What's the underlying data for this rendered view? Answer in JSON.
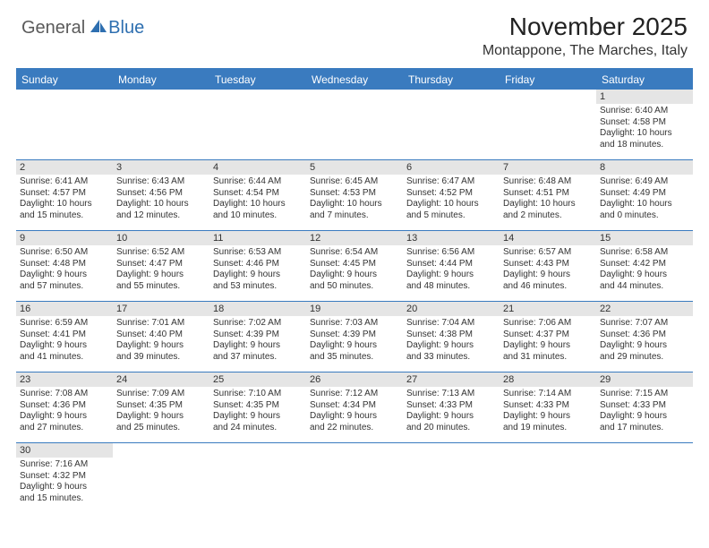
{
  "logo": {
    "text1": "General",
    "text2": "Blue"
  },
  "title": "November 2025",
  "location": "Montappone, The Marches, Italy",
  "colors": {
    "header_bar": "#3a7bbf",
    "daynum_bg": "#e5e5e5",
    "text": "#333333",
    "logo_gray": "#5a5a5a",
    "logo_blue": "#2e6fb0"
  },
  "weekdays": [
    "Sunday",
    "Monday",
    "Tuesday",
    "Wednesday",
    "Thursday",
    "Friday",
    "Saturday"
  ],
  "weeks": [
    [
      null,
      null,
      null,
      null,
      null,
      null,
      {
        "d": "1",
        "sr": "Sunrise: 6:40 AM",
        "ss": "Sunset: 4:58 PM",
        "dl1": "Daylight: 10 hours",
        "dl2": "and 18 minutes."
      }
    ],
    [
      {
        "d": "2",
        "sr": "Sunrise: 6:41 AM",
        "ss": "Sunset: 4:57 PM",
        "dl1": "Daylight: 10 hours",
        "dl2": "and 15 minutes."
      },
      {
        "d": "3",
        "sr": "Sunrise: 6:43 AM",
        "ss": "Sunset: 4:56 PM",
        "dl1": "Daylight: 10 hours",
        "dl2": "and 12 minutes."
      },
      {
        "d": "4",
        "sr": "Sunrise: 6:44 AM",
        "ss": "Sunset: 4:54 PM",
        "dl1": "Daylight: 10 hours",
        "dl2": "and 10 minutes."
      },
      {
        "d": "5",
        "sr": "Sunrise: 6:45 AM",
        "ss": "Sunset: 4:53 PM",
        "dl1": "Daylight: 10 hours",
        "dl2": "and 7 minutes."
      },
      {
        "d": "6",
        "sr": "Sunrise: 6:47 AM",
        "ss": "Sunset: 4:52 PM",
        "dl1": "Daylight: 10 hours",
        "dl2": "and 5 minutes."
      },
      {
        "d": "7",
        "sr": "Sunrise: 6:48 AM",
        "ss": "Sunset: 4:51 PM",
        "dl1": "Daylight: 10 hours",
        "dl2": "and 2 minutes."
      },
      {
        "d": "8",
        "sr": "Sunrise: 6:49 AM",
        "ss": "Sunset: 4:49 PM",
        "dl1": "Daylight: 10 hours",
        "dl2": "and 0 minutes."
      }
    ],
    [
      {
        "d": "9",
        "sr": "Sunrise: 6:50 AM",
        "ss": "Sunset: 4:48 PM",
        "dl1": "Daylight: 9 hours",
        "dl2": "and 57 minutes."
      },
      {
        "d": "10",
        "sr": "Sunrise: 6:52 AM",
        "ss": "Sunset: 4:47 PM",
        "dl1": "Daylight: 9 hours",
        "dl2": "and 55 minutes."
      },
      {
        "d": "11",
        "sr": "Sunrise: 6:53 AM",
        "ss": "Sunset: 4:46 PM",
        "dl1": "Daylight: 9 hours",
        "dl2": "and 53 minutes."
      },
      {
        "d": "12",
        "sr": "Sunrise: 6:54 AM",
        "ss": "Sunset: 4:45 PM",
        "dl1": "Daylight: 9 hours",
        "dl2": "and 50 minutes."
      },
      {
        "d": "13",
        "sr": "Sunrise: 6:56 AM",
        "ss": "Sunset: 4:44 PM",
        "dl1": "Daylight: 9 hours",
        "dl2": "and 48 minutes."
      },
      {
        "d": "14",
        "sr": "Sunrise: 6:57 AM",
        "ss": "Sunset: 4:43 PM",
        "dl1": "Daylight: 9 hours",
        "dl2": "and 46 minutes."
      },
      {
        "d": "15",
        "sr": "Sunrise: 6:58 AM",
        "ss": "Sunset: 4:42 PM",
        "dl1": "Daylight: 9 hours",
        "dl2": "and 44 minutes."
      }
    ],
    [
      {
        "d": "16",
        "sr": "Sunrise: 6:59 AM",
        "ss": "Sunset: 4:41 PM",
        "dl1": "Daylight: 9 hours",
        "dl2": "and 41 minutes."
      },
      {
        "d": "17",
        "sr": "Sunrise: 7:01 AM",
        "ss": "Sunset: 4:40 PM",
        "dl1": "Daylight: 9 hours",
        "dl2": "and 39 minutes."
      },
      {
        "d": "18",
        "sr": "Sunrise: 7:02 AM",
        "ss": "Sunset: 4:39 PM",
        "dl1": "Daylight: 9 hours",
        "dl2": "and 37 minutes."
      },
      {
        "d": "19",
        "sr": "Sunrise: 7:03 AM",
        "ss": "Sunset: 4:39 PM",
        "dl1": "Daylight: 9 hours",
        "dl2": "and 35 minutes."
      },
      {
        "d": "20",
        "sr": "Sunrise: 7:04 AM",
        "ss": "Sunset: 4:38 PM",
        "dl1": "Daylight: 9 hours",
        "dl2": "and 33 minutes."
      },
      {
        "d": "21",
        "sr": "Sunrise: 7:06 AM",
        "ss": "Sunset: 4:37 PM",
        "dl1": "Daylight: 9 hours",
        "dl2": "and 31 minutes."
      },
      {
        "d": "22",
        "sr": "Sunrise: 7:07 AM",
        "ss": "Sunset: 4:36 PM",
        "dl1": "Daylight: 9 hours",
        "dl2": "and 29 minutes."
      }
    ],
    [
      {
        "d": "23",
        "sr": "Sunrise: 7:08 AM",
        "ss": "Sunset: 4:36 PM",
        "dl1": "Daylight: 9 hours",
        "dl2": "and 27 minutes."
      },
      {
        "d": "24",
        "sr": "Sunrise: 7:09 AM",
        "ss": "Sunset: 4:35 PM",
        "dl1": "Daylight: 9 hours",
        "dl2": "and 25 minutes."
      },
      {
        "d": "25",
        "sr": "Sunrise: 7:10 AM",
        "ss": "Sunset: 4:35 PM",
        "dl1": "Daylight: 9 hours",
        "dl2": "and 24 minutes."
      },
      {
        "d": "26",
        "sr": "Sunrise: 7:12 AM",
        "ss": "Sunset: 4:34 PM",
        "dl1": "Daylight: 9 hours",
        "dl2": "and 22 minutes."
      },
      {
        "d": "27",
        "sr": "Sunrise: 7:13 AM",
        "ss": "Sunset: 4:33 PM",
        "dl1": "Daylight: 9 hours",
        "dl2": "and 20 minutes."
      },
      {
        "d": "28",
        "sr": "Sunrise: 7:14 AM",
        "ss": "Sunset: 4:33 PM",
        "dl1": "Daylight: 9 hours",
        "dl2": "and 19 minutes."
      },
      {
        "d": "29",
        "sr": "Sunrise: 7:15 AM",
        "ss": "Sunset: 4:33 PM",
        "dl1": "Daylight: 9 hours",
        "dl2": "and 17 minutes."
      }
    ],
    [
      {
        "d": "30",
        "sr": "Sunrise: 7:16 AM",
        "ss": "Sunset: 4:32 PM",
        "dl1": "Daylight: 9 hours",
        "dl2": "and 15 minutes."
      },
      null,
      null,
      null,
      null,
      null,
      null
    ]
  ]
}
